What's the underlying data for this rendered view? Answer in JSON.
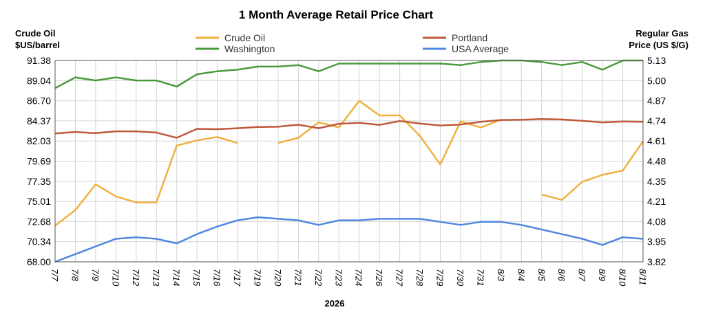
{
  "chart_data": {
    "type": "line",
    "title": "1 Month Average Retail Price Chart",
    "left_axis": {
      "label_line1": "Crude Oil",
      "label_line2": "$US/barrel",
      "ylim": [
        68.0,
        91.38
      ],
      "ticks": [
        "91.38",
        "89.04",
        "86.70",
        "84.37",
        "82.03",
        "79.69",
        "77.35",
        "75.01",
        "72.68",
        "70.34",
        "68.00"
      ]
    },
    "right_axis": {
      "label_line1": "Regular Gas",
      "label_line2": "Price (US $/G)",
      "ylim": [
        3.82,
        5.13
      ],
      "ticks": [
        "5.13",
        "5.00",
        "4.87",
        "4.74",
        "4.61",
        "4.48",
        "4.35",
        "4.21",
        "4.08",
        "3.95",
        "3.82"
      ]
    },
    "xlabel": "2026",
    "categories": [
      "7/7",
      "7/8",
      "7/9",
      "7/10",
      "7/12",
      "7/13",
      "7/14",
      "7/15",
      "7/16",
      "7/17",
      "7/19",
      "7/20",
      "7/21",
      "7/22",
      "7/23",
      "7/24",
      "7/26",
      "7/27",
      "7/28",
      "7/29",
      "7/30",
      "7/31",
      "8/3",
      "8/4",
      "8/5",
      "8/6",
      "8/7",
      "8/9",
      "8/10",
      "8/11"
    ],
    "grid": true,
    "legend_position": "top",
    "series": [
      {
        "name": "Crude Oil",
        "axis": "left",
        "color": "#f0b040",
        "values": [
          72.2,
          74.0,
          77.0,
          75.6,
          74.9,
          74.9,
          81.5,
          82.1,
          82.5,
          81.8,
          null,
          81.8,
          82.4,
          84.2,
          83.6,
          86.7,
          85.0,
          85.0,
          82.6,
          79.3,
          84.3,
          83.6,
          84.5,
          null,
          75.8,
          75.2,
          77.3,
          78.1,
          78.6,
          82.0
        ]
      },
      {
        "name": "Portland",
        "axis": "right",
        "color": "#c0583a",
        "values": [
          4.655,
          4.665,
          4.657,
          4.669,
          4.669,
          4.661,
          4.627,
          4.685,
          4.683,
          4.689,
          4.697,
          4.699,
          4.712,
          4.689,
          4.718,
          4.724,
          4.711,
          4.736,
          4.72,
          4.707,
          4.713,
          4.731,
          4.743,
          4.744,
          4.749,
          4.746,
          4.738,
          4.727,
          4.733,
          4.731
        ]
      },
      {
        "name": "Washington",
        "axis": "right",
        "color": "#4a9a3c",
        "values": [
          4.95,
          5.02,
          5.0,
          5.02,
          5.0,
          5.0,
          4.96,
          5.04,
          5.06,
          5.07,
          5.09,
          5.09,
          5.1,
          5.06,
          5.11,
          5.11,
          5.11,
          5.11,
          5.11,
          5.11,
          5.1,
          5.12,
          5.13,
          5.13,
          5.12,
          5.1,
          5.12,
          5.07,
          5.13,
          5.13
        ]
      },
      {
        "name": "USA Average",
        "axis": "right",
        "color": "#4f87e0",
        "values": [
          3.82,
          3.87,
          3.92,
          3.97,
          3.98,
          3.97,
          3.94,
          4.0,
          4.05,
          4.09,
          4.11,
          4.1,
          4.09,
          4.06,
          4.09,
          4.09,
          4.1,
          4.1,
          4.1,
          4.08,
          4.06,
          4.08,
          4.08,
          4.06,
          4.03,
          4.0,
          3.97,
          3.93,
          3.98,
          3.97
        ]
      }
    ]
  }
}
